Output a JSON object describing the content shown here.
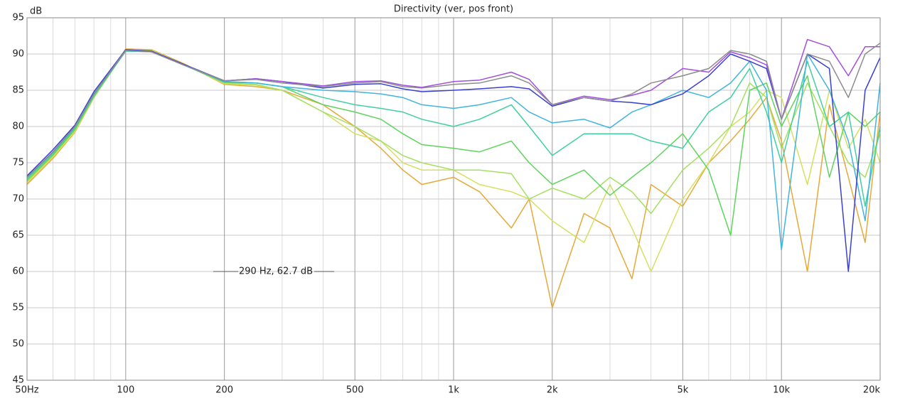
{
  "chart_data": {
    "type": "line",
    "title": "Directivity (ver, pos front)",
    "y_label": "dB",
    "annotation": "290 Hz, 62.7 dB",
    "log_x": true,
    "grid": true,
    "xlim": [
      50,
      20000
    ],
    "ylim": [
      45,
      95
    ],
    "xticks": [
      {
        "value": 50,
        "label": "50Hz"
      },
      100,
      200,
      500,
      {
        "value": 1000,
        "label": "1k"
      },
      {
        "value": 2000,
        "label": "2k"
      },
      {
        "value": 5000,
        "label": "5k"
      },
      {
        "value": 10000,
        "label": "10k"
      },
      {
        "value": 20000,
        "label": "20k"
      }
    ],
    "xminorticks": [
      60,
      70,
      80,
      90,
      300,
      400,
      600,
      700,
      800,
      900,
      3000,
      4000,
      6000,
      7000,
      8000,
      9000
    ],
    "yticks": [
      45,
      50,
      55,
      60,
      65,
      70,
      75,
      80,
      85,
      90,
      95
    ],
    "x": [
      50,
      60,
      70,
      80,
      100,
      120,
      150,
      200,
      250,
      300,
      400,
      500,
      600,
      700,
      800,
      1000,
      1200,
      1500,
      1700,
      2000,
      2500,
      3000,
      3500,
      4000,
      5000,
      6000,
      7000,
      8000,
      9000,
      10000,
      12000,
      14000,
      16000,
      18000,
      20000
    ],
    "series": [
      {
        "color": "#8c8c8c",
        "values": [
          73,
          76.5,
          80,
          84.5,
          90.5,
          90.3,
          88.5,
          86.3,
          86.5,
          86,
          85.5,
          86,
          86.2,
          85.5,
          85.3,
          85.8,
          86,
          87,
          86,
          83,
          84,
          83.5,
          84.5,
          86,
          87,
          88,
          90.5,
          90,
          89,
          81,
          90,
          89,
          84,
          90,
          91.5
        ]
      },
      {
        "color": "#a050e0",
        "values": [
          73,
          76.5,
          80,
          84.5,
          90.5,
          90.3,
          88.5,
          86.3,
          86.6,
          86.2,
          85.6,
          86.2,
          86.3,
          85.7,
          85.4,
          86.2,
          86.4,
          87.5,
          86.5,
          83,
          84.2,
          83.7,
          84.3,
          85,
          88,
          87.5,
          90.3,
          89.5,
          88.5,
          81,
          92,
          91,
          87,
          91,
          91
        ]
      },
      {
        "color": "#3a40d0",
        "values": [
          73.2,
          76.8,
          80.2,
          84.8,
          90.6,
          90.4,
          88.6,
          86.3,
          86.6,
          86.2,
          85.3,
          85.8,
          85.9,
          85.2,
          84.8,
          85,
          85.2,
          85.5,
          85.2,
          82.8,
          84,
          83.5,
          83.3,
          83,
          84.5,
          87,
          90,
          89,
          88,
          81,
          90,
          88,
          60,
          85,
          89.5
        ]
      },
      {
        "color": "#40b4e0",
        "values": [
          73,
          76.5,
          80,
          84.5,
          90.5,
          90.3,
          88.5,
          86.2,
          86,
          85.5,
          85,
          84.8,
          84.5,
          84,
          83,
          82.5,
          83,
          84,
          82,
          80.5,
          81,
          79.8,
          82,
          83,
          85,
          84,
          86,
          89,
          85,
          63,
          90,
          85,
          78,
          67,
          86
        ]
      },
      {
        "color": "#40d0a0",
        "values": [
          72.8,
          76.3,
          79.8,
          84.3,
          90.4,
          90.3,
          88.5,
          86.2,
          86,
          85.5,
          84,
          83,
          82.5,
          82,
          81,
          80,
          81,
          83,
          80,
          76,
          79,
          79,
          79,
          78,
          77,
          82,
          84,
          88,
          82,
          75,
          89,
          80,
          82,
          69,
          80
        ]
      },
      {
        "color": "#5ed45e",
        "values": [
          72.6,
          76.1,
          79.6,
          84.2,
          90.4,
          90.3,
          88.5,
          86.1,
          86,
          85.5,
          83,
          82,
          81,
          79,
          77.5,
          77,
          76.5,
          78,
          75,
          72,
          74,
          70.5,
          73,
          75,
          79,
          74,
          65,
          85,
          86,
          80,
          87,
          73,
          82,
          80,
          82
        ]
      },
      {
        "color": "#a4e060",
        "values": [
          72.4,
          76,
          79.5,
          84,
          90.5,
          90.4,
          88.6,
          86,
          85.8,
          85,
          82,
          80,
          78,
          76,
          75,
          74,
          74,
          73.5,
          70,
          71.5,
          70,
          73,
          71,
          68,
          74,
          77,
          80,
          86,
          84,
          77,
          86,
          80,
          75,
          73,
          79
        ]
      },
      {
        "color": "#d4e060",
        "values": [
          72.2,
          75.8,
          79.3,
          84,
          90.6,
          90.5,
          88.6,
          85.9,
          85.7,
          85,
          82,
          79,
          78,
          75,
          74,
          74,
          72,
          71,
          70,
          67,
          64,
          72,
          66,
          60,
          70,
          75,
          80,
          82,
          85,
          84,
          72,
          85,
          77,
          81,
          75
        ]
      },
      {
        "color": "#e8a838",
        "values": [
          72,
          75.6,
          79.2,
          84,
          90.7,
          90.6,
          88.7,
          85.8,
          85.5,
          85,
          83,
          80,
          77,
          74,
          72,
          73,
          71,
          66,
          70,
          55,
          68,
          66,
          59,
          72,
          69,
          75,
          78,
          81,
          84,
          78,
          60,
          83,
          73,
          64,
          82
        ]
      }
    ]
  }
}
